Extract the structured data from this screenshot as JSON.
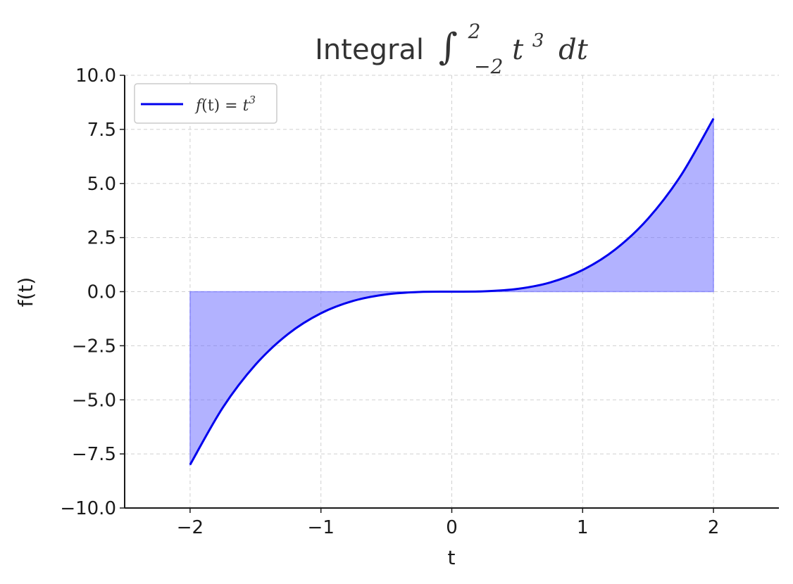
{
  "chart_data": {
    "type": "area",
    "title": {
      "prefix": "Integral",
      "integral_sign": "∫",
      "upper_limit": "2",
      "lower_limit": "−2",
      "integrand_base": "t",
      "integrand_exp": "3",
      "differential": "dt"
    },
    "xlabel": "t",
    "ylabel": "f(t)",
    "xlim": [
      -2.5,
      2.5
    ],
    "ylim": [
      -10,
      10
    ],
    "xticks": [
      -2,
      -1,
      0,
      1,
      2
    ],
    "xtick_labels": [
      "−2",
      "−1",
      "0",
      "1",
      "2"
    ],
    "yticks": [
      -10,
      -7.5,
      -5,
      -2.5,
      0,
      2.5,
      5,
      7.5,
      10
    ],
    "ytick_labels": [
      "−10.0",
      "−7.5",
      "−5.0",
      "−2.5",
      "0.0",
      "2.5",
      "5.0",
      "7.5",
      "10.0"
    ],
    "grid": true,
    "legend_position": "top-left",
    "series": [
      {
        "name": "f(t) = t³",
        "legend_parts": {
          "func": "f",
          "arg": "(t) = ",
          "base": "t",
          "exp": "3"
        },
        "color": "#0000ee",
        "x": [
          -2.0,
          -1.75,
          -1.5,
          -1.25,
          -1.0,
          -0.75,
          -0.5,
          -0.25,
          0.0,
          0.25,
          0.5,
          0.75,
          1.0,
          1.25,
          1.5,
          1.75,
          2.0
        ],
        "y": [
          -8.0,
          -5.359,
          -3.375,
          -1.953,
          -1.0,
          -0.422,
          -0.125,
          -0.016,
          0.0,
          0.016,
          0.125,
          0.422,
          1.0,
          1.953,
          3.375,
          5.359,
          8.0
        ]
      }
    ],
    "fill": {
      "from": -2,
      "to": 2,
      "baseline": 0,
      "color": "#6666ff",
      "opacity": 0.5
    }
  }
}
